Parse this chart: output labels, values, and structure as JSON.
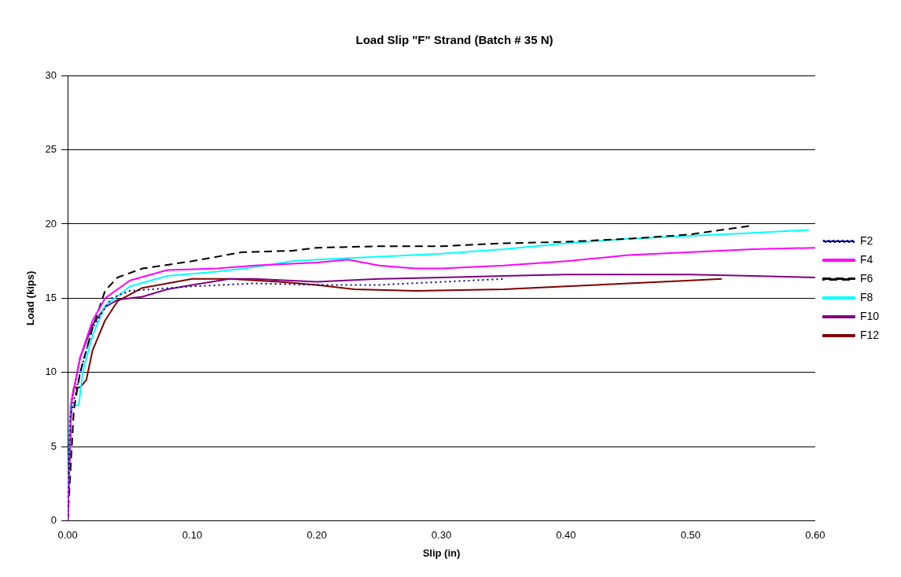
{
  "chart_data": {
    "type": "line",
    "title": "Load Slip \"F\" Strand (Batch # 35 N)",
    "xlabel": "Slip (in)",
    "ylabel": "Load (kips)",
    "xlim": [
      0,
      0.6
    ],
    "xticks": [
      {
        "value": 0,
        "label": "0.00"
      },
      {
        "value": 0.1,
        "label": "0.10"
      },
      {
        "value": 0.2,
        "label": "0.20"
      },
      {
        "value": 0.3,
        "label": "0.30"
      },
      {
        "value": 0.4,
        "label": "0.40"
      },
      {
        "value": 0.5,
        "label": "0.50"
      },
      {
        "value": 0.6,
        "label": "0.60"
      }
    ],
    "ylim": [
      0,
      30
    ],
    "yticks": [
      0,
      5,
      10,
      15,
      20,
      25,
      30
    ],
    "grid": "y",
    "legend": "right",
    "marker": "none",
    "series": [
      {
        "name": "F2",
        "color": "#000080",
        "line_style": "dotted",
        "x": [
          0,
          0.002,
          0.01,
          0.02,
          0.035,
          0.05,
          0.1,
          0.15,
          0.2,
          0.25,
          0.3,
          0.35
        ],
        "values": [
          0,
          7,
          10,
          13,
          15,
          15.5,
          15.8,
          16,
          15.9,
          15.9,
          16.1,
          16.3
        ]
      },
      {
        "name": "F4",
        "color": "#ff00ff",
        "line_style": "solid",
        "x": [
          0,
          0.003,
          0.01,
          0.02,
          0.03,
          0.05,
          0.08,
          0.12,
          0.15,
          0.2,
          0.225,
          0.25,
          0.28,
          0.3,
          0.35,
          0.4,
          0.45,
          0.5,
          0.55,
          0.6
        ],
        "values": [
          0,
          8,
          11,
          13.5,
          15,
          16.2,
          16.9,
          17,
          17.2,
          17.4,
          17.6,
          17.2,
          17,
          17,
          17.2,
          17.5,
          17.9,
          18.1,
          18.3,
          18.4
        ]
      },
      {
        "name": "F6",
        "color": "#000000",
        "line_style": "dashed",
        "x": [
          0,
          0.005,
          0.01,
          0.02,
          0.03,
          0.04,
          0.06,
          0.1,
          0.14,
          0.18,
          0.2,
          0.25,
          0.3,
          0.35,
          0.4,
          0.45,
          0.5,
          0.55
        ],
        "values": [
          0,
          7.5,
          10,
          13,
          15.5,
          16.4,
          17,
          17.5,
          18.1,
          18.2,
          18.4,
          18.5,
          18.5,
          18.7,
          18.8,
          19,
          19.3,
          19.9
        ]
      },
      {
        "name": "F8",
        "color": "#00ffff",
        "line_style": "solid",
        "x": [
          0,
          0.002,
          0.009,
          0.012,
          0.02,
          0.03,
          0.05,
          0.08,
          0.12,
          0.15,
          0.18,
          0.2,
          0.25,
          0.3,
          0.35,
          0.4,
          0.45,
          0.5,
          0.55,
          0.595
        ],
        "values": [
          0,
          7.8,
          7.8,
          10,
          12.5,
          14.5,
          15.8,
          16.5,
          16.8,
          17.1,
          17.5,
          17.6,
          17.8,
          18,
          18.3,
          18.7,
          19,
          19.2,
          19.4,
          19.6
        ]
      },
      {
        "name": "F10",
        "color": "#800080",
        "line_style": "solid",
        "x": [
          0,
          0.003,
          0.01,
          0.02,
          0.03,
          0.04,
          0.06,
          0.08,
          0.1,
          0.13,
          0.15,
          0.2,
          0.25,
          0.3,
          0.35,
          0.4,
          0.45,
          0.5,
          0.55,
          0.6
        ],
        "values": [
          0,
          8,
          11,
          13.2,
          14.4,
          14.9,
          15.1,
          15.6,
          15.9,
          16.3,
          16.3,
          16.1,
          16.3,
          16.4,
          16.5,
          16.6,
          16.6,
          16.6,
          16.5,
          16.4
        ]
      },
      {
        "name": "F12",
        "color": "#800000",
        "line_style": "solid",
        "x": [
          0,
          0.003,
          0.005,
          0.01,
          0.015,
          0.02,
          0.03,
          0.04,
          0.06,
          0.08,
          0.1,
          0.13,
          0.17,
          0.2,
          0.23,
          0.28,
          0.35,
          0.4,
          0.45,
          0.5,
          0.525
        ],
        "values": [
          0,
          8,
          9,
          9,
          9.5,
          11.5,
          13.5,
          14.8,
          15.7,
          16,
          16.3,
          16.3,
          16.1,
          15.9,
          15.6,
          15.5,
          15.6,
          15.8,
          16,
          16.2,
          16.3
        ]
      }
    ]
  }
}
